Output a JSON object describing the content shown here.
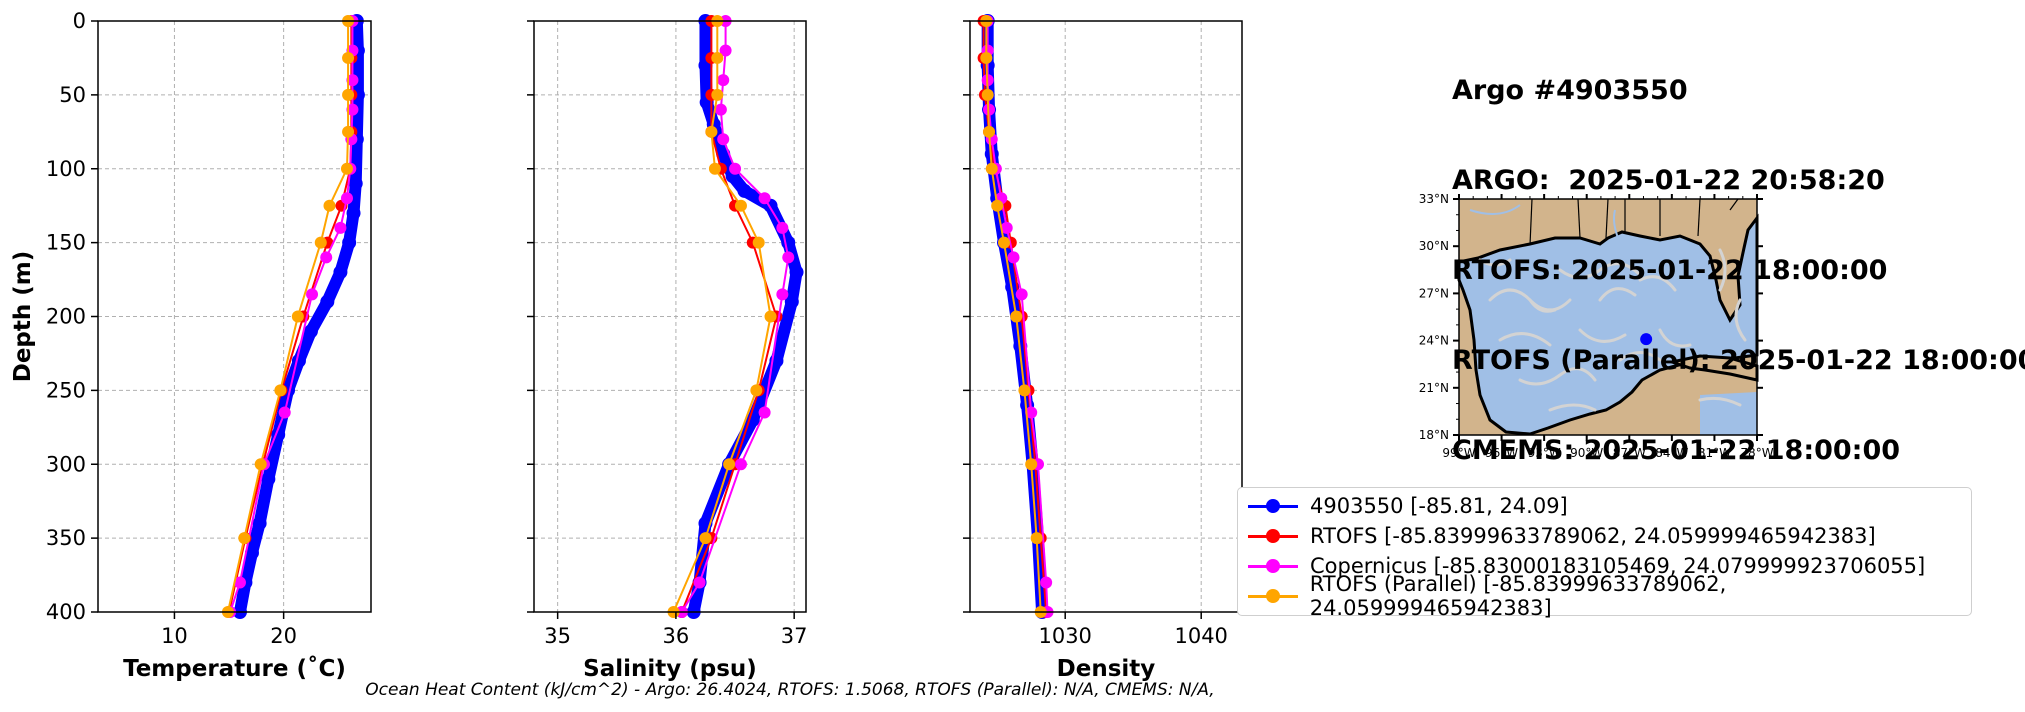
{
  "header": {
    "lines": [
      "Argo #4903550",
      "ARGO:  2025-01-22 20:58:20",
      "RTOFS: 2025-01-22 18:00:00",
      "RTOFS (Parallel): 2025-01-22 18:00:00",
      "CMEMS: 2025-01-22 18:00:00"
    ]
  },
  "footer": "Ocean Heat Content (kJ/cm^2) - Argo: 26.4024,  RTOFS: 1.5068,  RTOFS (Parallel): N/A,  CMEMS: N/A,",
  "colors": {
    "argo": "#0000ff",
    "rtofs": "#ff0000",
    "copernicus": "#ff00ff",
    "parallel": "#ffa500",
    "land": "#d2b48c",
    "ocean": "#a0bfe6",
    "current": "#d3d3d3",
    "grid": "#b0b0b0"
  },
  "legend": [
    {
      "label": "4903550 [-85.81, 24.09]",
      "color": "#0000ff"
    },
    {
      "label": "RTOFS [-85.83999633789062, 24.059999465942383]",
      "color": "#ff0000"
    },
    {
      "label": "Copernicus [-85.83000183105469, 24.079999923706055]",
      "color": "#ff00ff"
    },
    {
      "label": "RTOFS (Parallel) [-85.83999633789062, 24.059999465942383]",
      "color": "#ffa500"
    }
  ],
  "chart_data": [
    {
      "type": "line",
      "xlabel": "Temperature (˚C)",
      "ylabel": "Depth (m)",
      "xlim": [
        3,
        28
      ],
      "xticks": [
        10,
        20
      ],
      "ylim": [
        400,
        0
      ],
      "yticks": [
        0,
        50,
        100,
        150,
        200,
        250,
        300,
        350,
        400
      ],
      "grid": true,
      "series": [
        {
          "name": "4903550 [-85.81, 24.09]",
          "x": [
            26.7,
            26.8,
            26.8,
            26.7,
            26.6,
            26.4,
            26.0,
            25.2,
            24.0,
            22.5,
            21.4,
            20.4,
            19.5,
            18.6,
            17.8,
            17.1,
            16.5,
            16.0
          ],
          "y": [
            0,
            20,
            50,
            80,
            110,
            130,
            150,
            170,
            190,
            210,
            230,
            250,
            280,
            310,
            340,
            360,
            380,
            400
          ]
        },
        {
          "name": "RTOFS [-85.83999633789062, 24.059999465942383]",
          "x": [
            26.2,
            26.2,
            26.2,
            26.2,
            26.1,
            25.3,
            24.0,
            21.8,
            19.8,
            18.1,
            16.5,
            15.0
          ],
          "y": [
            0,
            25,
            50,
            75,
            100,
            125,
            150,
            200,
            250,
            300,
            350,
            400
          ]
        },
        {
          "name": "Copernicus [-85.83000183105469, 24.079999923706055]",
          "x": [
            26.3,
            26.3,
            26.3,
            26.3,
            26.2,
            26.1,
            25.8,
            25.2,
            23.9,
            22.6,
            20.1,
            18.2,
            16.0,
            15.1
          ],
          "y": [
            0,
            20,
            40,
            60,
            80,
            100,
            120,
            140,
            160,
            185,
            265,
            300,
            380,
            400
          ]
        },
        {
          "name": "RTOFS (Parallel) [-85.83999633789062, 24.059999465942383]",
          "x": [
            25.9,
            25.9,
            25.9,
            25.9,
            25.8,
            24.2,
            23.4,
            21.3,
            19.7,
            17.9,
            16.4,
            14.9
          ],
          "y": [
            0,
            25,
            50,
            75,
            100,
            125,
            150,
            200,
            250,
            300,
            350,
            400
          ]
        }
      ]
    },
    {
      "type": "line",
      "xlabel": "Salinity (psu)",
      "xlim": [
        34.8,
        37.1
      ],
      "xticks": [
        35,
        36,
        37
      ],
      "ylim": [
        400,
        0
      ],
      "grid": true,
      "series": [
        {
          "name": "4903550 [-85.81, 24.09]",
          "x": [
            36.25,
            36.25,
            36.26,
            36.32,
            36.4,
            36.48,
            36.58,
            36.8,
            36.95,
            37.02,
            36.98,
            36.85,
            36.65,
            36.45,
            36.25,
            36.2,
            36.15
          ],
          "y": [
            0,
            30,
            55,
            70,
            90,
            105,
            115,
            125,
            150,
            170,
            190,
            230,
            270,
            300,
            340,
            380,
            400
          ]
        },
        {
          "name": "RTOFS [-85.83999633789062, 24.059999465942383]",
          "x": [
            36.3,
            36.3,
            36.3,
            36.3,
            36.38,
            36.5,
            36.65,
            36.85,
            36.7,
            36.5,
            36.3,
            36.05
          ],
          "y": [
            0,
            25,
            50,
            75,
            100,
            125,
            150,
            200,
            250,
            300,
            350,
            400
          ]
        },
        {
          "name": "Copernicus [-85.83000183105469, 24.079999923706055]",
          "x": [
            36.42,
            36.42,
            36.4,
            36.38,
            36.4,
            36.5,
            36.75,
            36.9,
            36.95,
            36.9,
            36.75,
            36.55,
            36.2,
            36.05
          ],
          "y": [
            0,
            20,
            40,
            60,
            80,
            100,
            120,
            140,
            160,
            185,
            265,
            300,
            380,
            400
          ]
        },
        {
          "name": "RTOFS (Parallel) [-85.83999633789062, 24.059999465942383]",
          "x": [
            36.35,
            36.35,
            36.35,
            36.3,
            36.33,
            36.55,
            36.7,
            36.8,
            36.68,
            36.45,
            36.25,
            35.98
          ],
          "y": [
            0,
            25,
            50,
            75,
            100,
            125,
            150,
            200,
            250,
            300,
            350,
            400
          ]
        }
      ]
    },
    {
      "type": "line",
      "xlabel": "Density",
      "xlim": [
        1023,
        1043
      ],
      "xticks": [
        1030,
        1040
      ],
      "ylim": [
        400,
        0
      ],
      "grid": true,
      "series": [
        {
          "name": "4903550 [-85.81, 24.09]",
          "x": [
            1024.3,
            1024.3,
            1024.4,
            1024.6,
            1025.0,
            1025.5,
            1026.1,
            1026.7,
            1027.2,
            1027.6,
            1028.0,
            1028.3
          ],
          "y": [
            0,
            30,
            60,
            90,
            120,
            150,
            180,
            220,
            260,
            300,
            350,
            400
          ]
        },
        {
          "name": "RTOFS [-85.83999633789062, 24.059999465942383]",
          "x": [
            1024.0,
            1024.0,
            1024.1,
            1024.4,
            1024.8,
            1025.6,
            1026.0,
            1026.8,
            1027.3,
            1027.8,
            1028.2,
            1028.6
          ],
          "y": [
            0,
            25,
            50,
            75,
            100,
            125,
            150,
            200,
            250,
            300,
            350,
            400
          ]
        },
        {
          "name": "Copernicus [-85.83000183105469, 24.079999923706055]",
          "x": [
            1024.3,
            1024.3,
            1024.3,
            1024.4,
            1024.6,
            1024.9,
            1025.3,
            1025.7,
            1026.2,
            1026.8,
            1027.5,
            1028.0,
            1028.6,
            1028.7
          ],
          "y": [
            0,
            20,
            40,
            60,
            80,
            100,
            120,
            140,
            160,
            185,
            265,
            300,
            380,
            400
          ]
        },
        {
          "name": "RTOFS (Parallel) [-85.83999633789062, 24.059999465942383]",
          "x": [
            1024.2,
            1024.2,
            1024.3,
            1024.4,
            1024.6,
            1025.0,
            1025.5,
            1026.4,
            1027.0,
            1027.5,
            1027.9,
            1028.2
          ],
          "y": [
            0,
            25,
            50,
            75,
            100,
            125,
            150,
            200,
            250,
            300,
            350,
            400
          ]
        }
      ]
    }
  ],
  "map": {
    "lat_ticks": [
      "18°N",
      "21°N",
      "24°N",
      "27°N",
      "30°N",
      "33°N"
    ],
    "lon_ticks": [
      "99°W",
      "96°W",
      "93°W",
      "90°W",
      "87°W",
      "84°W",
      "81°W",
      "78°W"
    ],
    "lon_range": [
      -99,
      -78
    ],
    "lat_range": [
      18,
      33
    ],
    "float_position": {
      "lon": -85.81,
      "lat": 24.09
    }
  }
}
